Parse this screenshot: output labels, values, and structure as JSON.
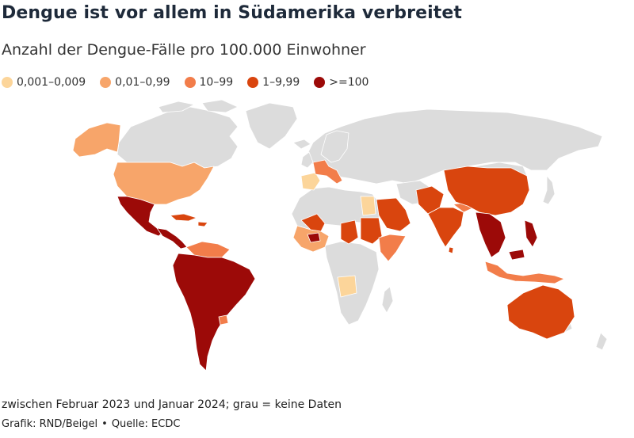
{
  "header": {
    "title": "Dengue ist vor allem in Südamerika verbreitet",
    "subtitle": "Anzahl der Dengue-Fälle pro 100.000 Einwohner"
  },
  "legend": [
    {
      "label": "0,001–0,009",
      "color": "#fcd59a"
    },
    {
      "label": "0,01–0,99",
      "color": "#f7a56a"
    },
    {
      "label": "10–99",
      "color": "#f27d4a"
    },
    {
      "label": "1–9,99",
      "color": "#d9450e"
    },
    {
      "label": ">=100",
      "color": "#9c0a08"
    }
  ],
  "no_data_color": "#dcdcdc",
  "footer": {
    "note": "zwischen Februar 2023 und Januar 2024; grau = keine Daten",
    "credit": "Grafik: RND/Beigel",
    "separator": "•",
    "source": "Quelle: ECDC"
  }
}
